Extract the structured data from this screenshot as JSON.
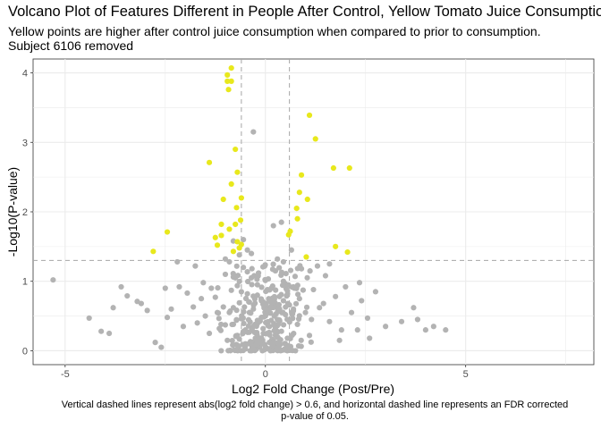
{
  "title": "Volcano Plot of Features Different in People After Control, Yellow Tomato Juice Consumption",
  "subtitle_lines": [
    "Yellow points are higher after control juice consumption when compared to prior to consumption.",
    "Subject 6106 removed"
  ],
  "caption_lines": [
    "Vertical dashed lines represent abs(log2 fold change) > 0.6, and horizontal dashed line represents an FDR corrected",
    "p-value of 0.05."
  ],
  "colors": {
    "significant": "#e8e81c",
    "other": "#b3b3b3",
    "grid": "#ebebeb",
    "threshold": "#a6a6a6"
  },
  "chart_data": {
    "type": "scatter",
    "xlabel": "Log2 Fold Change (Post/Pre)",
    "ylabel": "-Log10(P-value)",
    "xlim": [
      -5.8,
      8.2
    ],
    "ylim": [
      -0.2,
      4.2
    ],
    "x_ticks": [
      -5,
      0,
      5
    ],
    "y_ticks": [
      0,
      1,
      2,
      3,
      4
    ],
    "grid": true,
    "thresholds": {
      "vertical": [
        -0.6,
        0.6
      ],
      "horizontal": 1.3
    },
    "series": [
      {
        "color": "yellow",
        "points": [
          [
            -0.85,
            4.07
          ],
          [
            -0.95,
            3.97
          ],
          [
            -0.95,
            3.88
          ],
          [
            -0.85,
            3.88
          ],
          [
            -0.92,
            3.76
          ],
          [
            -0.75,
            2.9
          ],
          [
            -1.4,
            2.71
          ],
          [
            -0.7,
            2.57
          ],
          [
            -0.85,
            2.4
          ],
          [
            -0.6,
            2.2
          ],
          [
            -1.05,
            2.18
          ],
          [
            -0.72,
            2.06
          ],
          [
            -1.1,
            1.82
          ],
          [
            -0.75,
            1.82
          ],
          [
            -0.62,
            1.88
          ],
          [
            -0.9,
            1.75
          ],
          [
            -1.1,
            1.66
          ],
          [
            -1.25,
            1.63
          ],
          [
            -0.7,
            1.57
          ],
          [
            -0.6,
            1.53
          ],
          [
            -1.2,
            1.52
          ],
          [
            -0.65,
            1.48
          ],
          [
            -0.8,
            1.43
          ],
          [
            -2.45,
            1.71
          ],
          [
            -2.8,
            1.43
          ],
          [
            1.1,
            3.39
          ],
          [
            1.25,
            3.05
          ],
          [
            0.9,
            2.53
          ],
          [
            0.85,
            2.28
          ],
          [
            0.78,
            2.05
          ],
          [
            1.05,
            2.18
          ],
          [
            0.8,
            1.9
          ],
          [
            0.62,
            1.72
          ],
          [
            0.58,
            1.67
          ],
          [
            1.7,
            2.63
          ],
          [
            2.1,
            2.63
          ],
          [
            1.75,
            1.5
          ],
          [
            2.05,
            1.42
          ],
          [
            1.02,
            1.35
          ]
        ]
      },
      {
        "color": "gray",
        "points": [
          [
            -5.3,
            1.02
          ],
          [
            -4.4,
            0.47
          ],
          [
            -4.1,
            0.28
          ],
          [
            -3.9,
            0.25
          ],
          [
            -3.8,
            0.62
          ],
          [
            -3.6,
            0.92
          ],
          [
            -3.45,
            0.79
          ],
          [
            -3.2,
            0.71
          ],
          [
            -3.1,
            0.68
          ],
          [
            -2.95,
            0.58
          ],
          [
            -2.75,
            0.12
          ],
          [
            -2.6,
            0.05
          ],
          [
            -2.45,
            0.48
          ],
          [
            -2.35,
            0.6
          ],
          [
            -2.15,
            0.92
          ],
          [
            -1.95,
            0.83
          ],
          [
            -1.8,
            0.63
          ],
          [
            -1.7,
            0.4
          ],
          [
            -1.55,
            0.98
          ],
          [
            -1.5,
            0.5
          ],
          [
            -1.4,
            0.25
          ],
          [
            -1.35,
            0.9
          ],
          [
            -1.25,
            0.77
          ],
          [
            -1.15,
            0.32
          ],
          [
            -1.05,
            0.63
          ],
          [
            -1.0,
            1.1
          ],
          [
            -0.95,
            0.15
          ],
          [
            -0.9,
            0.55
          ],
          [
            -0.85,
            0.87
          ],
          [
            -0.8,
            0.38
          ],
          [
            -0.75,
            1.05
          ],
          [
            -0.7,
            0.22
          ],
          [
            -0.65,
            0.69
          ],
          [
            -0.6,
            0.46
          ],
          [
            -0.55,
            1.2
          ],
          [
            -0.5,
            0.3
          ],
          [
            -0.45,
            0.82
          ],
          [
            -0.4,
            0.55
          ],
          [
            -0.35,
            1.4
          ],
          [
            -0.3,
            0.6
          ],
          [
            -0.25,
            0.18
          ],
          [
            -0.2,
            0.95
          ],
          [
            -0.15,
            0.42
          ],
          [
            -0.1,
            0.72
          ],
          [
            -0.05,
            0.25
          ],
          [
            0.0,
            0.5
          ],
          [
            0.05,
            0.88
          ],
          [
            0.1,
            0.35
          ],
          [
            0.15,
            0.62
          ],
          [
            0.2,
            0.15
          ],
          [
            0.25,
            1.15
          ],
          [
            0.3,
            0.45
          ],
          [
            0.35,
            0.78
          ],
          [
            0.4,
            0.28
          ],
          [
            0.45,
            1.0
          ],
          [
            0.5,
            0.52
          ],
          [
            0.55,
            0.18
          ],
          [
            0.6,
            0.66
          ],
          [
            0.7,
            0.92
          ],
          [
            0.8,
            0.38
          ],
          [
            0.9,
            1.18
          ],
          [
            1.0,
            0.55
          ],
          [
            1.1,
            0.22
          ],
          [
            1.2,
            0.88
          ],
          [
            1.35,
            0.62
          ],
          [
            1.5,
            1.08
          ],
          [
            1.6,
            0.42
          ],
          [
            1.75,
            0.78
          ],
          [
            1.85,
            0.15
          ],
          [
            2.0,
            0.92
          ],
          [
            2.15,
            0.55
          ],
          [
            2.3,
            0.3
          ],
          [
            2.4,
            0.72
          ],
          [
            2.55,
            0.47
          ],
          [
            2.6,
            0.18
          ],
          [
            2.75,
            0.85
          ],
          [
            3.0,
            0.35
          ],
          [
            3.4,
            0.42
          ],
          [
            3.7,
            0.62
          ],
          [
            3.8,
            0.45
          ],
          [
            4.0,
            0.3
          ],
          [
            4.2,
            0.35
          ],
          [
            4.5,
            0.3
          ],
          [
            -0.3,
            3.15
          ],
          [
            0.2,
            1.8
          ],
          [
            0.4,
            1.85
          ],
          [
            -0.8,
            1.58
          ],
          [
            -0.9,
            1.28
          ],
          [
            -1.0,
            1.32
          ],
          [
            -0.55,
            1.6
          ],
          [
            -0.45,
            1.45
          ],
          [
            -0.65,
            1.38
          ],
          [
            0.65,
            1.45
          ],
          [
            0.45,
            1.28
          ],
          [
            0.3,
            1.32
          ],
          [
            -1.75,
            1.22
          ],
          [
            -2.2,
            1.28
          ],
          [
            1.3,
            1.22
          ],
          [
            1.6,
            1.25
          ],
          [
            -0.4,
            0.7
          ],
          [
            -0.3,
            0.35
          ],
          [
            -0.2,
            0.8
          ],
          [
            -0.1,
            0.48
          ],
          [
            0.05,
            0.62
          ],
          [
            0.15,
            0.9
          ],
          [
            0.25,
            0.33
          ],
          [
            -0.5,
            0.1
          ],
          [
            0.35,
            0.08
          ],
          [
            -0.15,
            0.05
          ],
          [
            0.1,
            0.12
          ],
          [
            -0.35,
            1.05
          ],
          [
            0.45,
            0.72
          ],
          [
            -0.6,
            0.85
          ],
          [
            0.7,
            0.6
          ],
          [
            -0.8,
            0.62
          ],
          [
            0.85,
            0.75
          ],
          [
            -1.2,
            0.55
          ],
          [
            1.15,
            0.45
          ],
          [
            -1.6,
            0.75
          ],
          [
            1.45,
            0.68
          ],
          [
            -2.05,
            0.35
          ],
          [
            1.9,
            0.3
          ],
          [
            -2.5,
            0.9
          ],
          [
            2.35,
            0.98
          ]
        ]
      }
    ]
  }
}
